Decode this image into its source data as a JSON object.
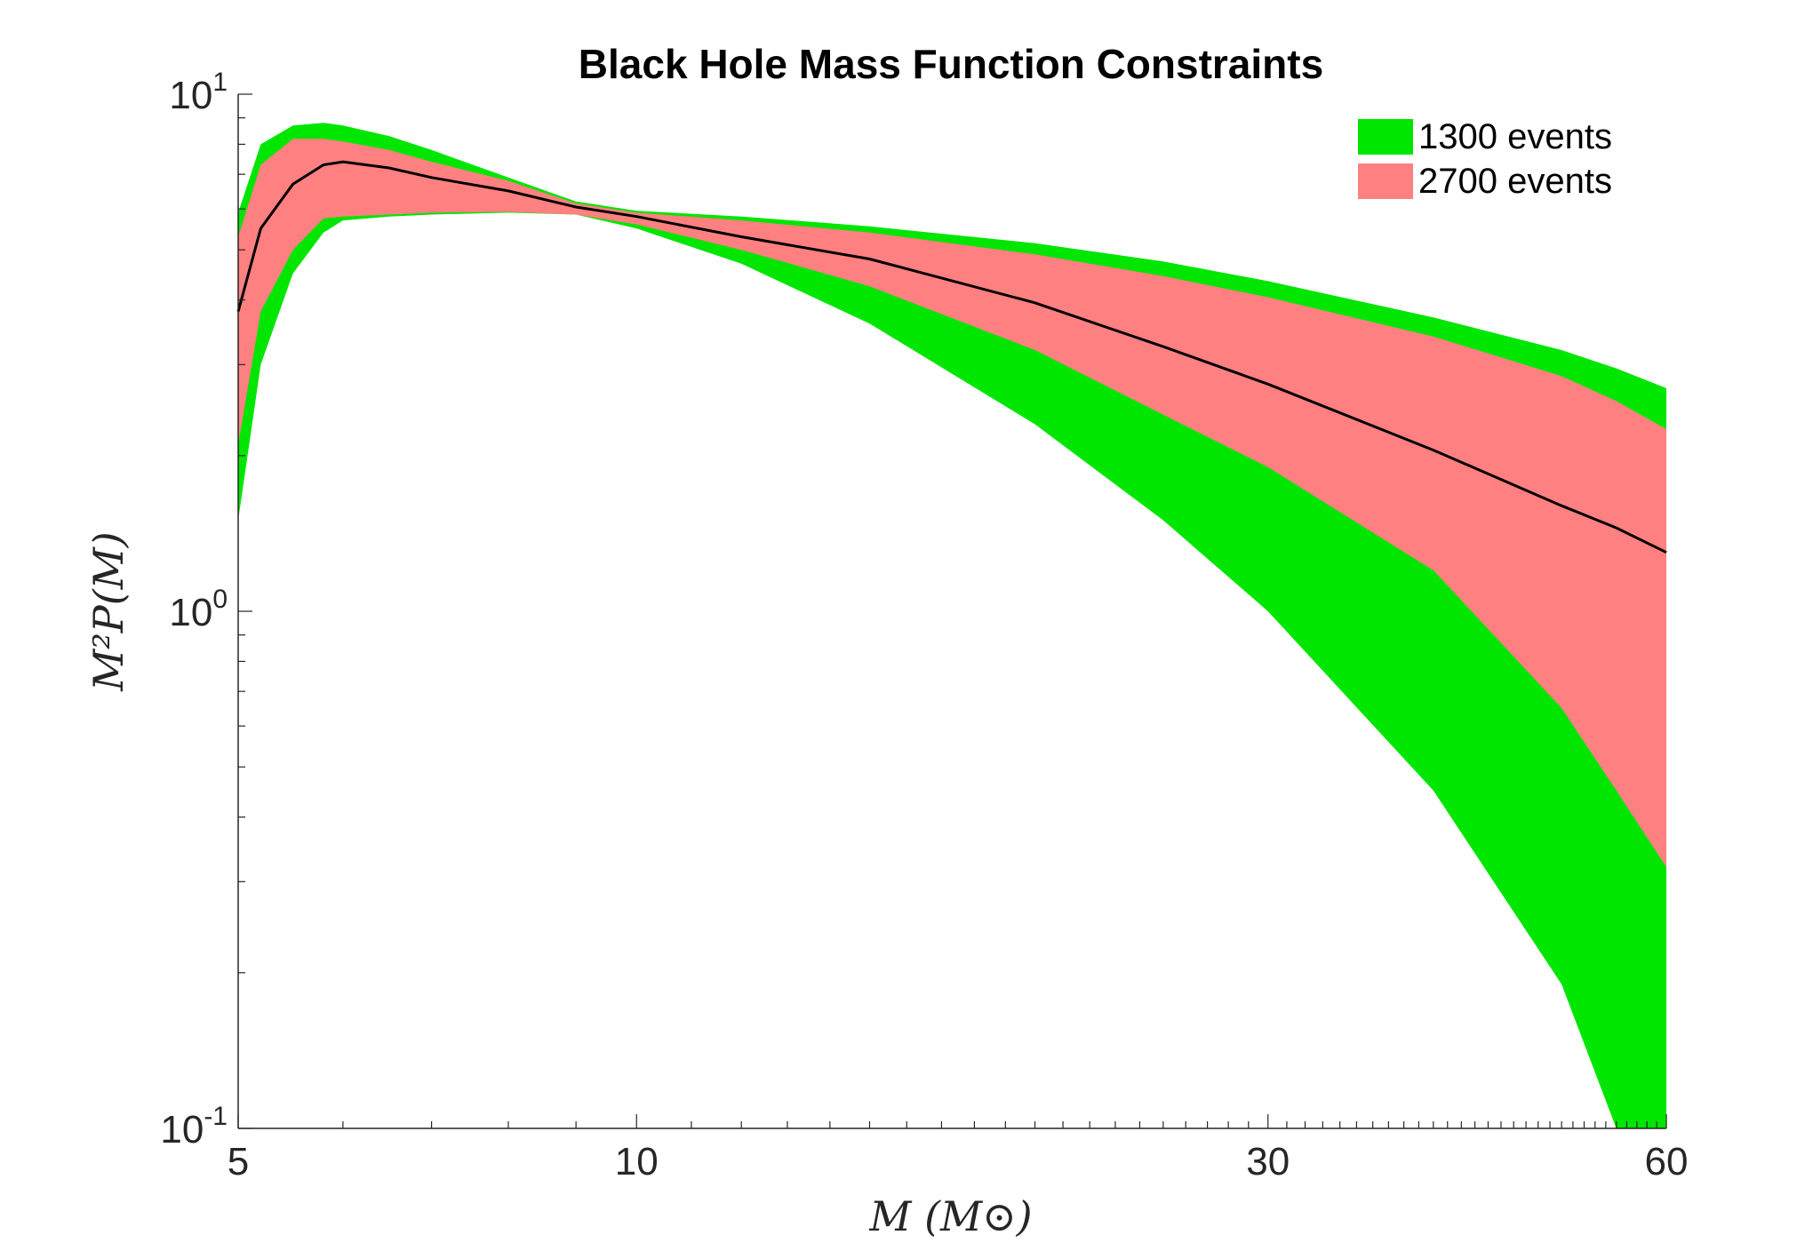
{
  "chart_data": {
    "type": "area",
    "title": "Black Hole Mass Function Constraints",
    "xlabel": "M (M⊙)",
    "ylabel": "M²P(M)",
    "xscale": "log",
    "yscale": "log",
    "xlim": [
      5,
      60
    ],
    "ylim": [
      0.1,
      10
    ],
    "x_ticks": [
      {
        "value": 5,
        "label": "5"
      },
      {
        "value": 10,
        "label": "10"
      },
      {
        "value": 30,
        "label": "30"
      },
      {
        "value": 60,
        "label": "60"
      }
    ],
    "y_ticks": [
      {
        "value": 0.1,
        "base": "10",
        "exp": "-1"
      },
      {
        "value": 1,
        "base": "10",
        "exp": "0"
      },
      {
        "value": 10,
        "base": "10",
        "exp": "1"
      }
    ],
    "legend_position": "top-right",
    "x": [
      5,
      5.2,
      5.5,
      5.8,
      6.0,
      6.5,
      7,
      8,
      9,
      10,
      12,
      15,
      20,
      25,
      30,
      40,
      50,
      55,
      60
    ],
    "series": [
      {
        "name": "1300 events",
        "color": "#00e600",
        "lower": [
          1.5,
          3.0,
          4.5,
          5.4,
          5.7,
          5.8,
          5.85,
          5.9,
          5.85,
          5.5,
          4.7,
          3.6,
          2.3,
          1.5,
          1.0,
          0.45,
          0.19,
          0.1,
          0.1
        ],
        "upper": [
          5.9,
          8.0,
          8.7,
          8.8,
          8.7,
          8.3,
          7.8,
          6.9,
          6.2,
          5.95,
          5.8,
          5.55,
          5.15,
          4.75,
          4.35,
          3.7,
          3.2,
          2.95,
          2.7
        ]
      },
      {
        "name": "2700 events",
        "color": "#ff8080",
        "lower": [
          2.1,
          3.8,
          5.0,
          5.75,
          5.8,
          5.85,
          5.9,
          5.92,
          5.85,
          5.6,
          5.0,
          4.25,
          3.2,
          2.4,
          1.9,
          1.2,
          0.65,
          0.45,
          0.32
        ],
        "upper": [
          5.3,
          7.3,
          8.2,
          8.2,
          8.1,
          7.8,
          7.4,
          6.8,
          6.15,
          5.9,
          5.7,
          5.4,
          4.9,
          4.45,
          4.05,
          3.4,
          2.85,
          2.55,
          2.25
        ]
      }
    ],
    "median": {
      "name": "median",
      "color": "#000000",
      "values": [
        3.8,
        5.5,
        6.7,
        7.3,
        7.4,
        7.2,
        6.9,
        6.5,
        6.05,
        5.8,
        5.3,
        4.8,
        3.95,
        3.25,
        2.75,
        2.05,
        1.6,
        1.45,
        1.3
      ]
    }
  }
}
